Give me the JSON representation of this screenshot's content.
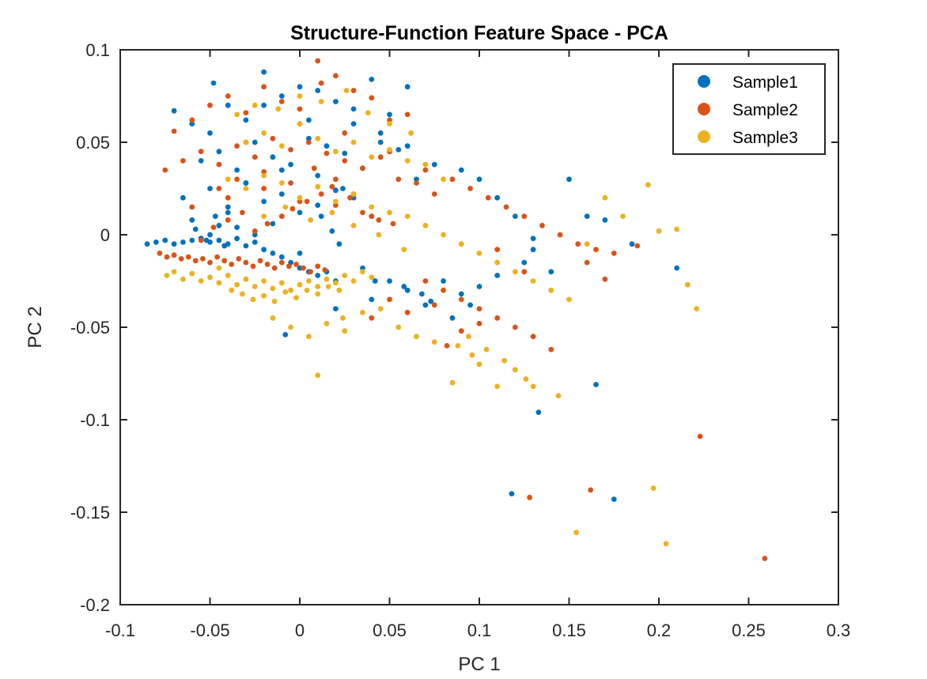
{
  "chart_data": {
    "type": "scatter",
    "title": "Structure-Function Feature Space - PCA",
    "xlabel": "PC 1",
    "ylabel": "PC 2",
    "xlim": [
      -0.1,
      0.3
    ],
    "ylim": [
      -0.2,
      0.1
    ],
    "xticks": [
      -0.1,
      -0.05,
      0,
      0.05,
      0.1,
      0.15,
      0.2,
      0.25,
      0.3
    ],
    "xtick_labels": [
      "-0.1",
      "-0.05",
      "0",
      "0.05",
      "0.1",
      "0.15",
      "0.2",
      "0.25",
      "0.3"
    ],
    "yticks": [
      0.1,
      0.05,
      0,
      -0.05,
      -0.1,
      -0.15,
      -0.2
    ],
    "ytick_labels": [
      "0.1",
      "0.05",
      "0",
      "-0.05",
      "-0.1",
      "-0.15",
      "-0.2"
    ],
    "grid": false,
    "legend_position": "top-right",
    "series": [
      {
        "name": "Sample1",
        "color": "#0072BD",
        "x": [
          -0.085,
          -0.08,
          -0.075,
          -0.07,
          -0.065,
          -0.06,
          -0.055,
          -0.05,
          -0.045,
          -0.04,
          -0.035,
          -0.03,
          -0.025,
          -0.02,
          -0.015,
          -0.01,
          -0.005,
          0,
          0.005,
          0.01,
          0.015,
          0.02,
          -0.07,
          -0.06,
          -0.05,
          -0.04,
          -0.03,
          -0.02,
          -0.01,
          0,
          0.01,
          0.02,
          0.03,
          0.04,
          0.05,
          0.06,
          -0.055,
          -0.045,
          -0.035,
          -0.025,
          -0.015,
          -0.005,
          0.005,
          0.015,
          0.025,
          0.035,
          0.045,
          0.055,
          0.065,
          -0.065,
          -0.05,
          -0.04,
          -0.03,
          -0.02,
          -0.01,
          0,
          0.01,
          0.02,
          0.03,
          0.04,
          -0.048,
          -0.02,
          0.005,
          0.03,
          0.045,
          0.06,
          0.075,
          0.09,
          0.1,
          0.11,
          0.12,
          0.13,
          0.15,
          0.16,
          0.17,
          0.185,
          0.21,
          0.08,
          0.09,
          0.095,
          0.1,
          0.11,
          0.125,
          0.13,
          0.14,
          0.06,
          0.07,
          0.085,
          0.04,
          0.05,
          0.02,
          -0.008,
          0.165,
          0.133,
          0.118,
          0.175,
          -0.05,
          -0.045,
          -0.055,
          -0.06,
          -0.04,
          -0.035,
          -0.052,
          -0.047,
          -0.042,
          -0.058,
          -0.025,
          -0.015,
          0.0,
          0.012,
          0.018,
          0.022,
          0.035,
          0.042,
          0.058,
          0.068,
          0.073,
          -0.03,
          -0.01,
          0.01,
          0.024
        ],
        "y": [
          -0.005,
          -0.004,
          -0.003,
          -0.005,
          -0.004,
          -0.003,
          -0.002,
          -0.004,
          -0.003,
          -0.005,
          -0.002,
          -0.006,
          -0.004,
          -0.008,
          -0.01,
          -0.012,
          -0.015,
          -0.018,
          -0.02,
          -0.022,
          -0.02,
          -0.025,
          0.067,
          0.06,
          0.055,
          0.07,
          0.062,
          0.088,
          0.075,
          0.08,
          0.078,
          0.072,
          0.068,
          0.084,
          0.065,
          0.08,
          0.04,
          0.045,
          0.035,
          0.05,
          0.042,
          0.038,
          0.052,
          0.048,
          0.044,
          0.036,
          0.05,
          0.046,
          0.03,
          0.02,
          0.025,
          0.015,
          0.028,
          0.018,
          0.022,
          0.012,
          0.016,
          0.024,
          0.02,
          0.01,
          0.082,
          0.07,
          0.062,
          0.06,
          0.055,
          0.048,
          0.038,
          0.035,
          0.03,
          0.02,
          0.01,
          -0.002,
          0.03,
          0.01,
          0.008,
          -0.005,
          -0.018,
          -0.025,
          -0.032,
          -0.038,
          -0.028,
          -0.022,
          -0.015,
          -0.008,
          -0.02,
          -0.03,
          -0.038,
          -0.045,
          -0.035,
          -0.025,
          -0.04,
          -0.054,
          -0.081,
          -0.096,
          -0.14,
          -0.143,
          0.0,
          0.005,
          -0.002,
          0.008,
          0.012,
          0.004,
          -0.003,
          0.01,
          -0.006,
          0.003,
          0.0,
          0.006,
          -0.01,
          0.01,
          0.002,
          -0.005,
          -0.018,
          -0.025,
          -0.028,
          -0.032,
          -0.036,
          0.028,
          0.035,
          0.032,
          0.025
        ]
      },
      {
        "name": "Sample2",
        "color": "#D95319",
        "x": [
          -0.078,
          -0.074,
          -0.07,
          -0.066,
          -0.062,
          -0.058,
          -0.054,
          -0.05,
          -0.046,
          -0.042,
          -0.038,
          -0.034,
          -0.03,
          -0.026,
          -0.022,
          -0.018,
          -0.014,
          -0.01,
          -0.006,
          -0.002,
          0.002,
          0.006,
          0.01,
          0.014,
          -0.07,
          -0.06,
          -0.05,
          -0.04,
          -0.03,
          -0.02,
          -0.01,
          0,
          0.01,
          0.02,
          0.03,
          0.04,
          0.05,
          0.06,
          -0.075,
          -0.065,
          -0.055,
          -0.045,
          -0.035,
          -0.025,
          -0.015,
          -0.005,
          0.005,
          0.015,
          0.025,
          0.035,
          0.045,
          0.055,
          0.065,
          0.075,
          -0.06,
          -0.04,
          -0.02,
          0,
          0.02,
          0.04,
          0.012,
          0.0,
          -0.03,
          0.025,
          0.05,
          0.07,
          0.085,
          0.095,
          0.105,
          0.115,
          0.125,
          0.135,
          0.145,
          0.155,
          0.165,
          0.175,
          0.188,
          0.16,
          0.17,
          0.08,
          0.09,
          0.1,
          0.11,
          0.12,
          0.13,
          0.14,
          0.07,
          0.075,
          0.06,
          0.05,
          0.04,
          0.125,
          0.11,
          0.223,
          0.162,
          0.128,
          0.259,
          0.09,
          0.1,
          0.082,
          -0.055,
          -0.048,
          -0.04,
          -0.032,
          -0.025,
          -0.018,
          -0.01,
          -0.004,
          0.004,
          0.012,
          0.02,
          0.028,
          0.035,
          0.044,
          0.052,
          -0.045,
          -0.035,
          -0.02,
          -0.005,
          0.008,
          0.018,
          0.03
        ],
        "y": [
          -0.01,
          -0.012,
          -0.011,
          -0.013,
          -0.012,
          -0.014,
          -0.013,
          -0.015,
          -0.012,
          -0.014,
          -0.016,
          -0.013,
          -0.015,
          -0.017,
          -0.014,
          -0.016,
          -0.018,
          -0.015,
          -0.017,
          -0.016,
          -0.018,
          -0.02,
          -0.017,
          -0.019,
          0.056,
          0.062,
          0.07,
          0.075,
          0.066,
          0.08,
          0.072,
          0.068,
          0.094,
          0.086,
          0.078,
          0.074,
          0.062,
          0.065,
          0.035,
          0.04,
          0.045,
          0.038,
          0.048,
          0.042,
          0.052,
          0.046,
          0.05,
          0.044,
          0.04,
          0.036,
          0.042,
          0.03,
          0.028,
          0.022,
          0.015,
          0.02,
          0.025,
          0.018,
          0.03,
          0.01,
          0.082,
          0.06,
          0.05,
          0.055,
          0.045,
          0.035,
          0.03,
          0.025,
          0.02,
          0.015,
          0.01,
          0.005,
          0.0,
          -0.005,
          -0.008,
          -0.01,
          -0.006,
          -0.015,
          -0.024,
          -0.03,
          -0.035,
          -0.04,
          -0.045,
          -0.05,
          -0.055,
          -0.062,
          -0.025,
          -0.038,
          -0.042,
          -0.035,
          -0.045,
          -0.02,
          -0.008,
          -0.109,
          -0.138,
          -0.142,
          -0.175,
          -0.052,
          -0.048,
          -0.06,
          -0.003,
          0.004,
          0.008,
          0.012,
          0.002,
          0.006,
          0.01,
          0.014,
          0.018,
          0.022,
          0.016,
          0.02,
          0.012,
          0.008,
          0.006,
          0.025,
          0.03,
          0.034,
          0.028,
          0.036,
          0.026,
          0.022
        ]
      },
      {
        "name": "Sample3",
        "color": "#EDB120",
        "x": [
          -0.074,
          -0.07,
          -0.065,
          -0.06,
          -0.055,
          -0.05,
          -0.045,
          -0.04,
          -0.035,
          -0.03,
          -0.025,
          -0.02,
          -0.015,
          -0.01,
          -0.005,
          0,
          0.005,
          0.01,
          0.015,
          0.02,
          0.025,
          0.03,
          0.035,
          0.04,
          -0.045,
          -0.038,
          -0.032,
          -0.026,
          -0.02,
          -0.014,
          -0.008,
          -0.002,
          0.004,
          0.01,
          0.016,
          0.022,
          -0.03,
          -0.02,
          -0.01,
          0,
          0.01,
          0.02,
          0.03,
          0.04,
          0.05,
          0.06,
          0.07,
          0.08,
          -0.04,
          -0.03,
          -0.02,
          -0.01,
          0,
          0.01,
          0.02,
          0.03,
          0.04,
          0.05,
          0.06,
          0.07,
          0.08,
          0.09,
          0.1,
          0.11,
          0.12,
          0.13,
          0.14,
          0.15,
          0.16,
          0.17,
          0.18,
          0.194,
          0.2,
          0.21,
          0.216,
          0.221,
          0.094,
          0.104,
          0.114,
          0.12,
          0.126,
          0.13,
          0.085,
          0.11,
          0.144,
          0.197,
          0.204,
          0.154,
          0.01,
          0.024,
          0.045,
          0.055,
          0.065,
          0.075,
          0.088,
          0.096,
          0.1,
          -0.015,
          -0.005,
          0.005,
          0.015,
          0.025,
          0.035,
          -0.035,
          -0.025,
          -0.012,
          0.0,
          0.012,
          0.026,
          0.038,
          0.05,
          0.062,
          -0.02,
          -0.008,
          0.006,
          0.018,
          0.03,
          0.044,
          0.058
        ],
        "y": [
          -0.022,
          -0.02,
          -0.024,
          -0.021,
          -0.025,
          -0.023,
          -0.026,
          -0.022,
          -0.027,
          -0.024,
          -0.028,
          -0.025,
          -0.029,
          -0.026,
          -0.03,
          -0.027,
          -0.025,
          -0.028,
          -0.024,
          -0.026,
          -0.022,
          -0.025,
          -0.02,
          -0.023,
          -0.018,
          -0.03,
          -0.032,
          -0.035,
          -0.033,
          -0.036,
          -0.031,
          -0.034,
          -0.03,
          -0.032,
          -0.028,
          -0.03,
          0.05,
          0.055,
          0.048,
          0.06,
          0.052,
          0.045,
          0.05,
          0.042,
          0.046,
          0.04,
          0.038,
          0.03,
          0.03,
          0.025,
          0.032,
          0.028,
          0.02,
          0.026,
          0.018,
          0.022,
          0.015,
          0.012,
          0.01,
          0.005,
          0.0,
          -0.005,
          -0.01,
          -0.015,
          -0.02,
          -0.025,
          -0.03,
          -0.035,
          -0.005,
          0.02,
          0.01,
          0.027,
          0.002,
          0.003,
          -0.027,
          -0.04,
          -0.055,
          -0.062,
          -0.068,
          -0.073,
          -0.078,
          -0.082,
          -0.08,
          -0.082,
          -0.087,
          -0.137,
          -0.167,
          -0.161,
          -0.076,
          -0.045,
          -0.04,
          -0.05,
          -0.055,
          -0.058,
          -0.06,
          -0.065,
          -0.07,
          -0.045,
          -0.05,
          -0.055,
          -0.048,
          -0.052,
          -0.042,
          0.065,
          0.07,
          0.068,
          0.075,
          0.072,
          0.078,
          0.066,
          0.06,
          0.055,
          0.01,
          0.015,
          0.008,
          0.012,
          0.005,
          0.0,
          -0.008
        ]
      }
    ]
  }
}
